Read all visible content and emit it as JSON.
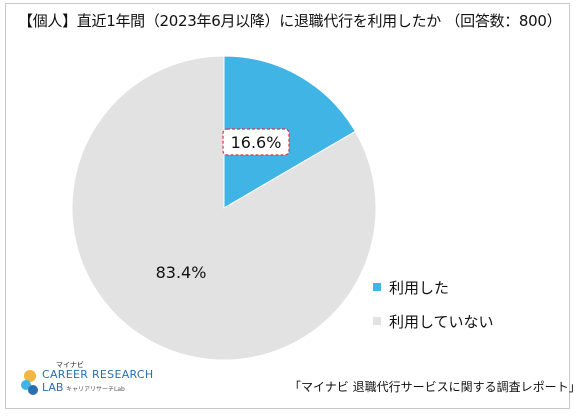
{
  "chart_data": {
    "type": "pie",
    "title": "【個人】直近1年間（2023年6月以降）に退職代行を利用したか （回答数：800）",
    "slices": [
      {
        "name": "利用した",
        "value": 16.6,
        "label": "16.6%",
        "color": "#41b4e6"
      },
      {
        "name": "利用していない",
        "value": 83.4,
        "label": "83.4%",
        "color": "#e2e2e2"
      }
    ],
    "start_angle_deg": 0,
    "direction": "clockwise",
    "legend_position": "right"
  },
  "logo": {
    "brand_small": "マイナビ",
    "name_line1": "CAREER RESEARCH",
    "name_line2": "LAB",
    "tagline": "キャリアリサーチLab"
  },
  "source": "「マイナビ 退職代行サービスに関する調査レポート」"
}
